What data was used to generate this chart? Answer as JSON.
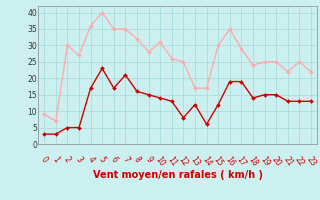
{
  "x": [
    0,
    1,
    2,
    3,
    4,
    5,
    6,
    7,
    8,
    9,
    10,
    11,
    12,
    13,
    14,
    15,
    16,
    17,
    18,
    19,
    20,
    21,
    22,
    23
  ],
  "wind_avg": [
    3,
    3,
    5,
    5,
    17,
    23,
    17,
    21,
    16,
    15,
    14,
    13,
    8,
    12,
    6,
    12,
    19,
    19,
    14,
    15,
    15,
    13,
    13,
    13
  ],
  "wind_gust": [
    9,
    7,
    30,
    27,
    36,
    40,
    35,
    35,
    32,
    28,
    31,
    26,
    25,
    17,
    17,
    30,
    35,
    29,
    24,
    25,
    25,
    22,
    25,
    22
  ],
  "avg_color": "#cc0000",
  "gust_color": "#ffaaaa",
  "background_color": "#ccf0f0",
  "grid_color": "#aadddd",
  "xlabel": "Vent moyen/en rafales ( km/h )",
  "xlabel_color": "#cc0000",
  "yticks": [
    0,
    5,
    10,
    15,
    20,
    25,
    30,
    35,
    40
  ],
  "ylim": [
    0,
    42
  ],
  "xlim": [
    -0.5,
    23.5
  ],
  "marker": "D",
  "markersize": 2.0,
  "linewidth": 1.0,
  "tick_fontsize": 5.5,
  "xlabel_fontsize": 7.0
}
